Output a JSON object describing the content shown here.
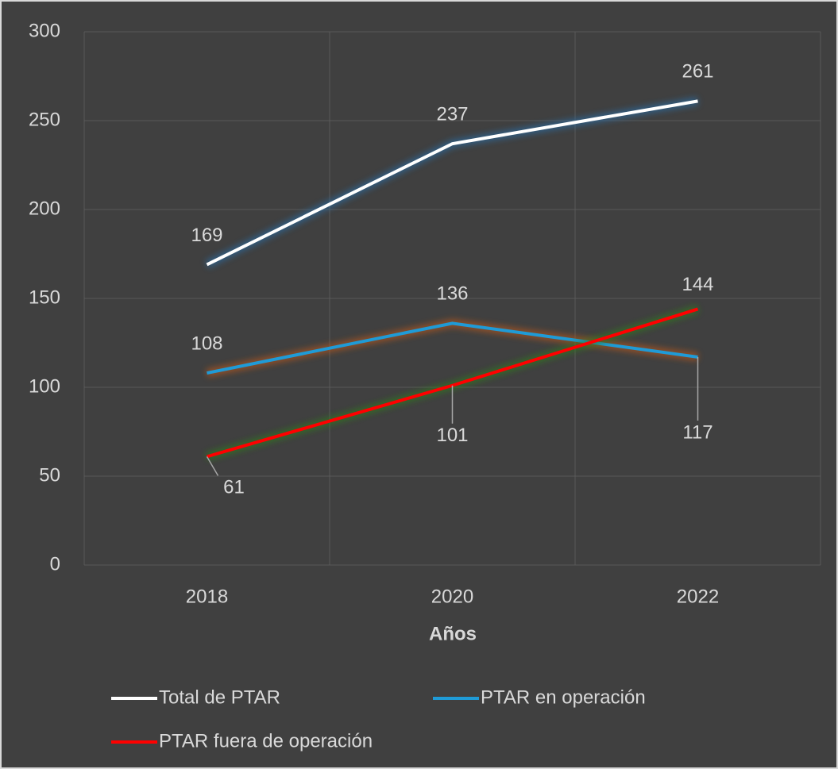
{
  "chart_data": {
    "type": "line",
    "x_label": "Años",
    "categories": [
      "2018",
      "2020",
      "2022"
    ],
    "series": [
      {
        "name": "Total de PTAR",
        "color": "#ffffff",
        "values": [
          169,
          237,
          261
        ]
      },
      {
        "name": "PTAR en operación",
        "color": "#1f9bd7",
        "values": [
          108,
          136,
          117
        ]
      },
      {
        "name": "PTAR fuera de operación",
        "color": "#ff0000",
        "values": [
          61,
          101,
          144
        ]
      }
    ],
    "ylim": [
      0,
      300
    ],
    "yticks": [
      0,
      50,
      100,
      150,
      200,
      250,
      300
    ],
    "grid": true
  }
}
